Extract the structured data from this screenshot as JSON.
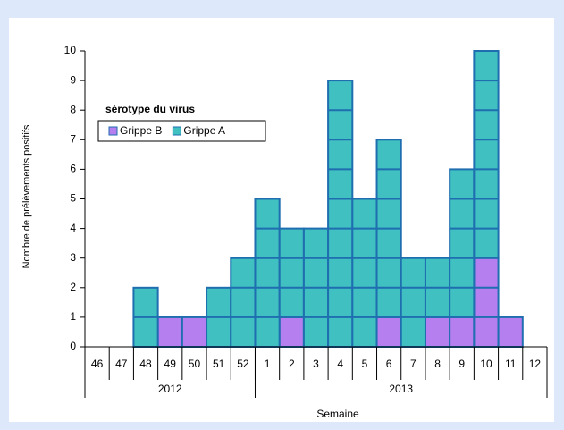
{
  "chart_data": {
    "type": "bar",
    "stacked": true,
    "x_label": "Semaine",
    "y_label": "Nombre de prélèvements positifs",
    "legend_title": "sérotype du virus",
    "categories": [
      "46",
      "47",
      "48",
      "49",
      "50",
      "51",
      "52",
      "1",
      "2",
      "3",
      "4",
      "5",
      "6",
      "7",
      "8",
      "9",
      "10",
      "11",
      "12"
    ],
    "year_groups": [
      {
        "label": "2012",
        "count": 7
      },
      {
        "label": "2013",
        "count": 12
      }
    ],
    "series": [
      {
        "name": "Grippe B",
        "color": "#b57ff0",
        "values": [
          0,
          0,
          0,
          1,
          1,
          0,
          0,
          0,
          1,
          0,
          0,
          0,
          1,
          0,
          1,
          1,
          3,
          1,
          0
        ]
      },
      {
        "name": "Grippe A",
        "color": "#40c0c0",
        "values": [
          0,
          0,
          2,
          0,
          0,
          2,
          3,
          5,
          3,
          4,
          9,
          5,
          6,
          3,
          2,
          5,
          7,
          0,
          0
        ]
      }
    ],
    "ylim": [
      0,
      10
    ],
    "yticks": [
      0,
      1,
      2,
      3,
      4,
      5,
      6,
      7,
      8,
      9,
      10
    ]
  }
}
